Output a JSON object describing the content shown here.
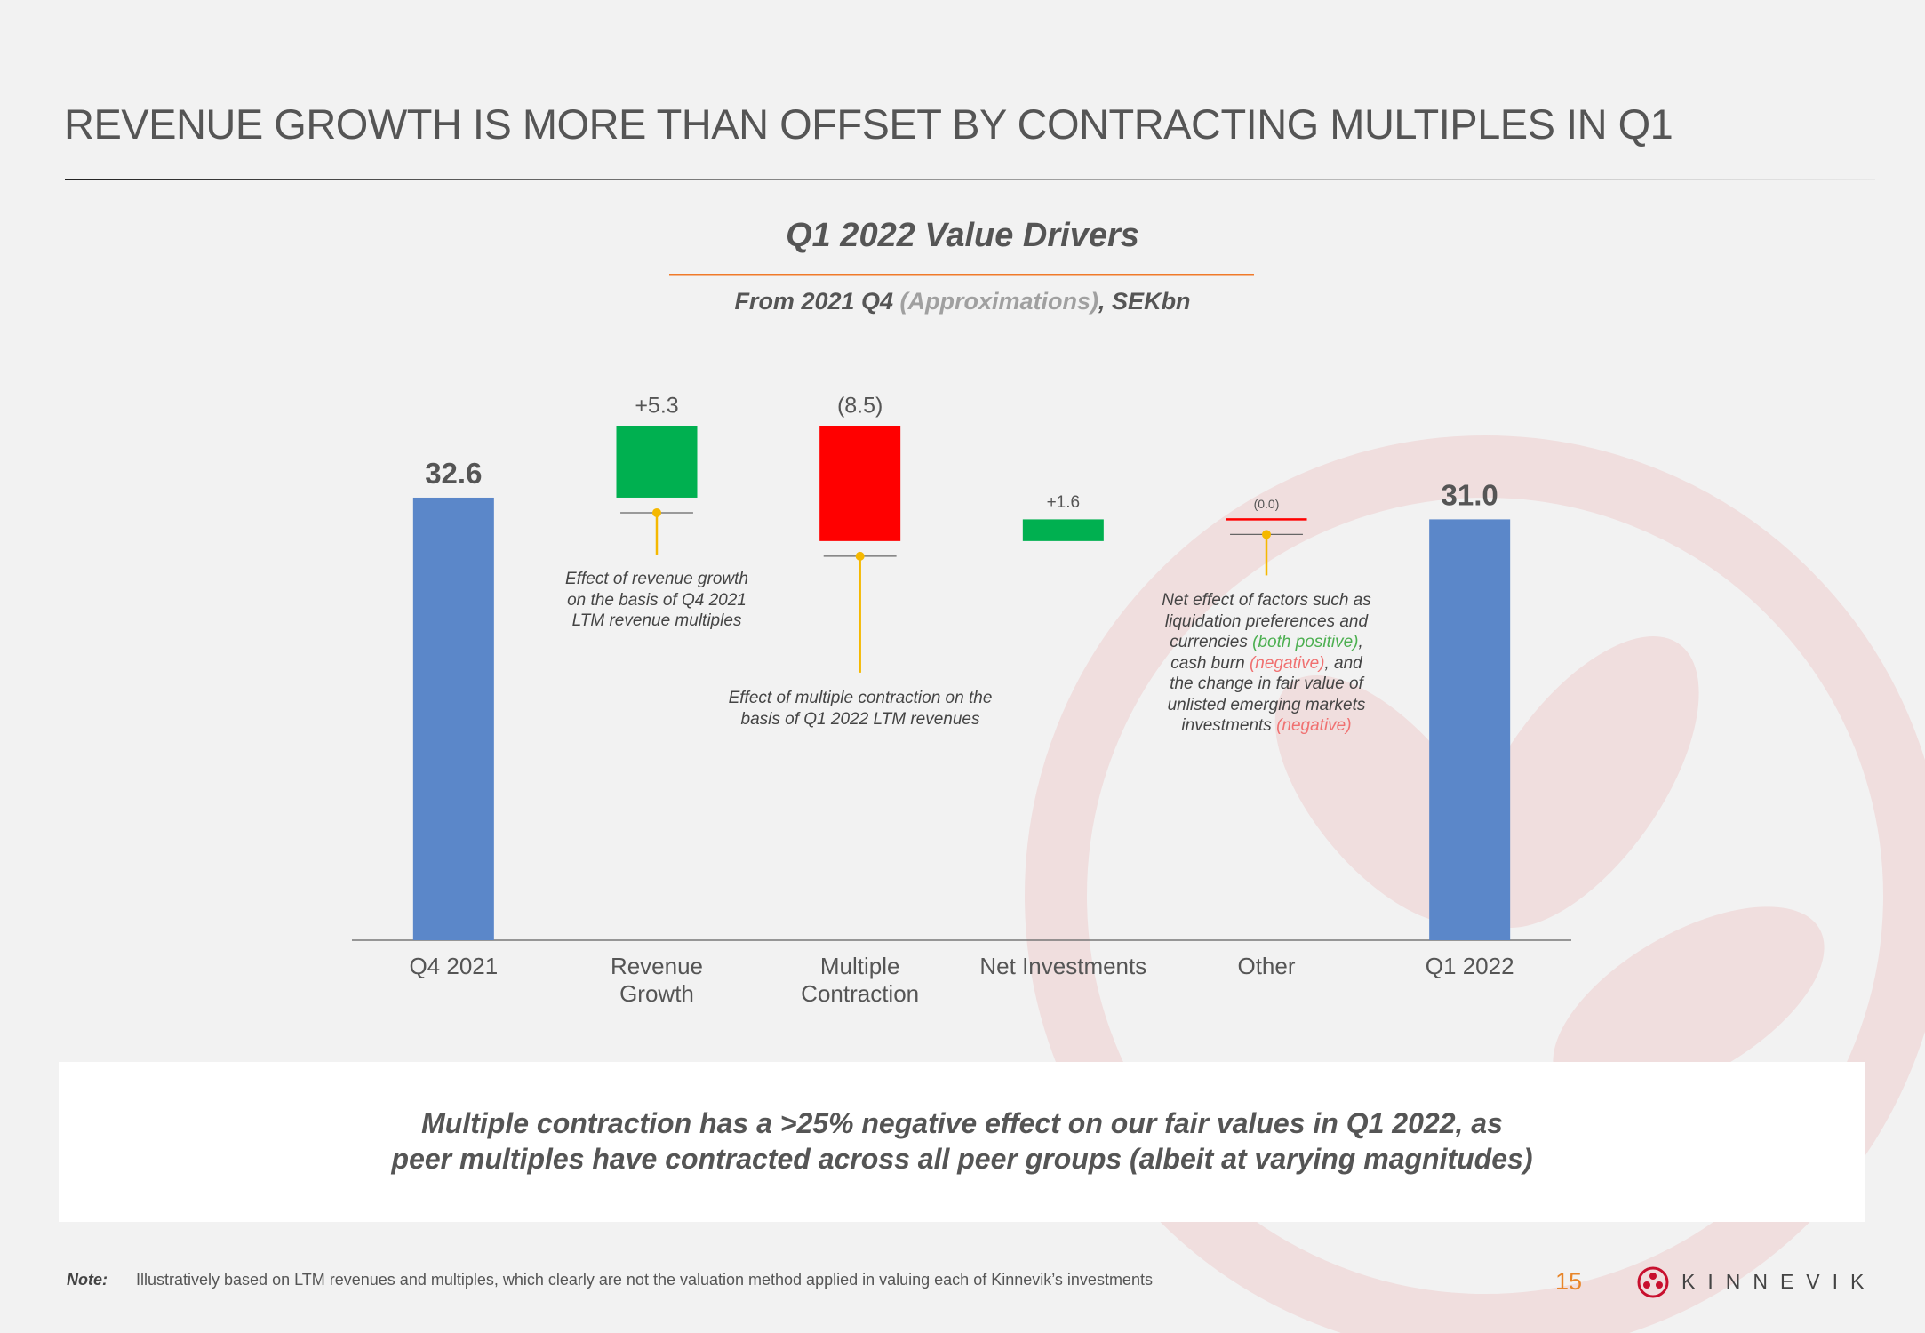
{
  "header": {
    "title": "REVENUE GROWTH IS MORE THAN OFFSET BY CONTRACTING MULTIPLES IN Q1"
  },
  "chart_data": {
    "type": "waterfall",
    "title": "Q1 2022 Value Drivers",
    "subtitle": [
      {
        "text": "From 2021 Q4 ",
        "color": "#555555"
      },
      {
        "text": "(Approximations)",
        "color": "#a0a0a0"
      },
      {
        "text": ", SEKbn",
        "color": "#555555"
      }
    ],
    "categories": [
      "Q4 2021",
      "Revenue\nGrowth",
      "Multiple\nContraction",
      "Net Investments",
      "Other",
      "Q1 2022"
    ],
    "values": [
      32.6,
      5.3,
      -8.5,
      1.6,
      0.0,
      31.0
    ],
    "value_labels": [
      "32.6",
      "+5.3",
      "(8.5)",
      "+1.6",
      "(0.0)",
      "31.0"
    ],
    "colors": [
      "#5b87c9",
      "#00b050",
      "#ff0000",
      "#00b050",
      "#ff0000",
      "#5b87c9"
    ],
    "annotations": [
      {
        "parts": [
          {
            "text": "Effect of revenue growth\non the basis of Q4 2021\nLTM revenue multiples"
          }
        ]
      },
      {
        "parts": [
          {
            "text": "Effect of multiple contraction on the\nbasis of Q1 2022 LTM revenues"
          }
        ]
      },
      {
        "parts": [
          {
            "text": "Net effect of factors such as\nliquidation preferences and\ncurrencies "
          },
          {
            "text": "(both positive)",
            "color": "#4caf50"
          },
          {
            "text": ",\ncash burn "
          },
          {
            "text": "(negative)",
            "color": "#f07070"
          },
          {
            "text": ", and\nthe change in fair value of\nunlisted emerging markets\ninvestments "
          },
          {
            "text": "(negative)",
            "color": "#f07070"
          }
        ]
      }
    ]
  },
  "callout": "Multiple contraction has a >25% negative effect on our fair values in Q1 2022, as\npeer multiples have contracted across all peer groups (albeit at varying magnitudes)",
  "footer": {
    "note_label": "Note:",
    "note": "Illustratively based on LTM revenues and multiples, which clearly are not the valuation method applied in valuing each of Kinnevik’s investments",
    "page_number": "15",
    "logo": "KINNEVIK"
  }
}
